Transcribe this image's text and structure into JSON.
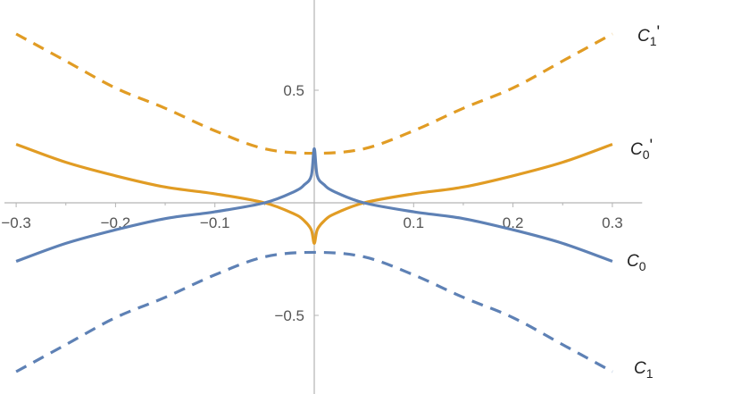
{
  "chart_data": {
    "type": "line",
    "title": "",
    "xlabel": "",
    "ylabel": "",
    "xlim": [
      -0.31,
      0.33
    ],
    "ylim": [
      -0.82,
      0.88
    ],
    "grid": false,
    "x_ticks": [
      {
        "value": -0.3,
        "label": "−0.3"
      },
      {
        "value": -0.2,
        "label": "−0.2"
      },
      {
        "value": -0.1,
        "label": "−0.1"
      },
      {
        "value": 0.1,
        "label": "0.1"
      },
      {
        "value": 0.2,
        "label": "0.2"
      },
      {
        "value": 0.3,
        "label": "0.3"
      }
    ],
    "y_ticks": [
      {
        "value": 0.5,
        "label": "0.5"
      },
      {
        "value": -0.5,
        "label": "−0.5"
      }
    ],
    "colors": {
      "blue": "#5e81b5",
      "orange": "#e19c24"
    },
    "series": [
      {
        "name": "C1'",
        "label_base": "C",
        "label_sub": "1",
        "label_sup": "'",
        "color": "#e19c24",
        "style": "dashed",
        "x": [
          -0.3,
          -0.25,
          -0.2,
          -0.15,
          -0.1,
          -0.05,
          0.0,
          0.05,
          0.1,
          0.15,
          0.2,
          0.25,
          0.3
        ],
        "y": [
          0.75,
          0.63,
          0.51,
          0.42,
          0.32,
          0.24,
          0.22,
          0.24,
          0.32,
          0.42,
          0.51,
          0.63,
          0.75
        ]
      },
      {
        "name": "C0'",
        "label_base": "C",
        "label_sub": "0",
        "label_sup": "'",
        "color": "#e19c24",
        "style": "solid",
        "x": [
          -0.3,
          -0.25,
          -0.2,
          -0.15,
          -0.1,
          -0.05,
          -0.02,
          -0.01,
          -0.003,
          0.0,
          0.003,
          0.01,
          0.02,
          0.05,
          0.1,
          0.15,
          0.2,
          0.25,
          0.3
        ],
        "y": [
          0.26,
          0.18,
          0.12,
          0.07,
          0.04,
          0.0,
          -0.05,
          -0.08,
          -0.12,
          -0.18,
          -0.12,
          -0.08,
          -0.05,
          0.0,
          0.04,
          0.07,
          0.12,
          0.18,
          0.26
        ]
      },
      {
        "name": "C0",
        "label_base": "C",
        "label_sub": "0",
        "label_sup": "",
        "color": "#5e81b5",
        "style": "solid",
        "x": [
          -0.3,
          -0.25,
          -0.2,
          -0.15,
          -0.1,
          -0.05,
          -0.02,
          -0.01,
          -0.003,
          0.0,
          0.003,
          0.01,
          0.02,
          0.05,
          0.1,
          0.15,
          0.2,
          0.25,
          0.3
        ],
        "y": [
          -0.26,
          -0.18,
          -0.12,
          -0.07,
          -0.04,
          0.0,
          0.05,
          0.08,
          0.12,
          0.24,
          0.12,
          0.08,
          0.05,
          0.0,
          -0.04,
          -0.07,
          -0.12,
          -0.18,
          -0.26
        ]
      },
      {
        "name": "C1",
        "label_base": "C",
        "label_sub": "1",
        "label_sup": "",
        "color": "#5e81b5",
        "style": "dashed",
        "x": [
          -0.3,
          -0.25,
          -0.2,
          -0.15,
          -0.1,
          -0.05,
          0.0,
          0.05,
          0.1,
          0.15,
          0.2,
          0.25,
          0.3
        ],
        "y": [
          -0.75,
          -0.63,
          -0.51,
          -0.42,
          -0.32,
          -0.24,
          -0.22,
          -0.24,
          -0.32,
          -0.42,
          -0.51,
          -0.63,
          -0.75
        ]
      }
    ]
  }
}
